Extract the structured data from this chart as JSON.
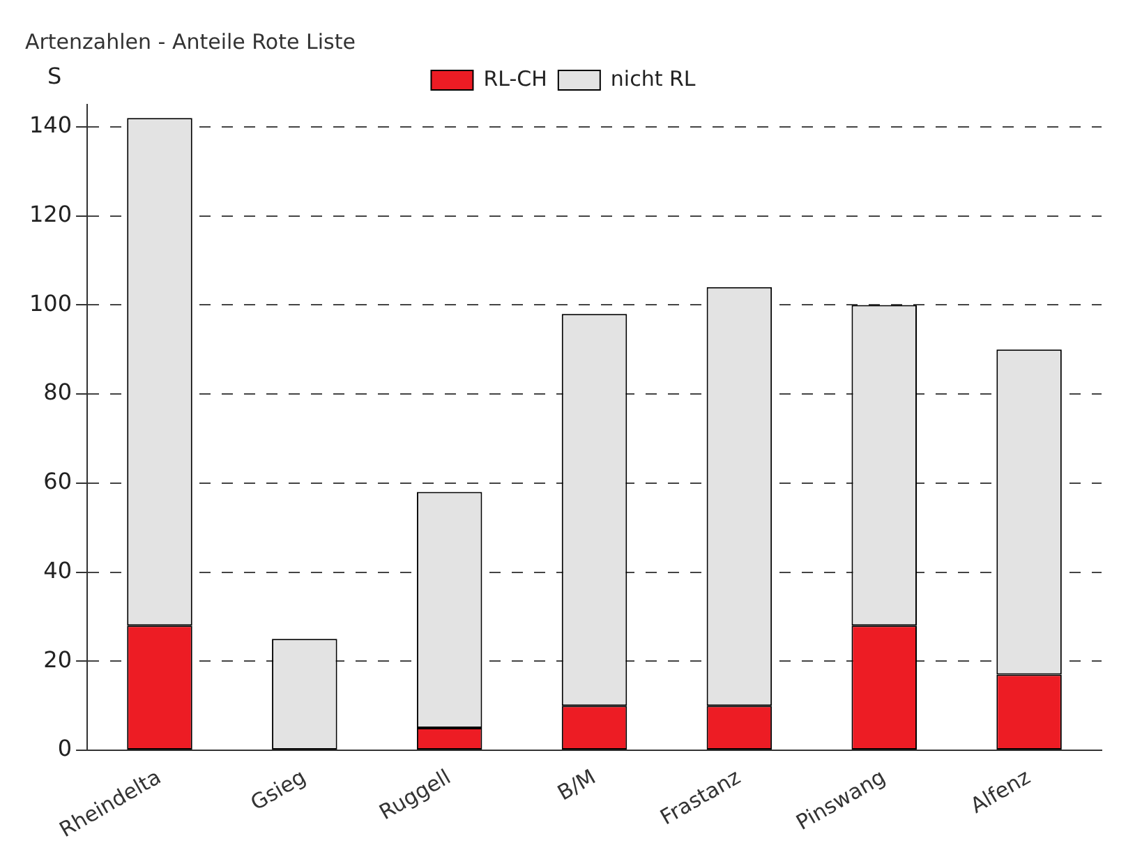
{
  "chart_data": {
    "type": "bar",
    "title": "Artenzahlen - Anteile Rote Liste",
    "ylabel": "S",
    "categories": [
      "Rheindelta",
      "Gsieg",
      "Ruggell",
      "B/M",
      "Frastanz",
      "Pinswang",
      "Alfenz"
    ],
    "stacked": true,
    "series": [
      {
        "name": "RL-CH",
        "color": "#ed1c24",
        "values": [
          28,
          0,
          5,
          10,
          10,
          28,
          17
        ]
      },
      {
        "name": "nicht RL",
        "color": "#e3e3e3",
        "values": [
          114,
          25,
          53,
          88,
          94,
          72,
          73
        ]
      }
    ],
    "ylim": [
      0,
      145
    ],
    "yticks": [
      0,
      20,
      40,
      60,
      80,
      100,
      120,
      140
    ],
    "grid": "y",
    "legend": "top"
  }
}
